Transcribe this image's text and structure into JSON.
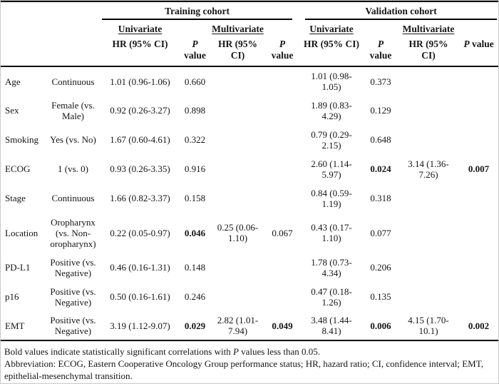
{
  "header": {
    "cohorts": [
      {
        "label": "Training cohort"
      },
      {
        "label": "Validation cohort"
      }
    ],
    "analyses": {
      "training_univariate": "Univariate",
      "training_multivariate": "Multivariate",
      "validation_univariate": "Univariate",
      "validation_multivariate": "Multivariate"
    },
    "hr_label": "HR (95% CI)",
    "p_label": {
      "italic": "P",
      "rest": "value"
    }
  },
  "rows": [
    {
      "variable": "Age",
      "category": "Continuous",
      "t_uni_hr": "1.01 (0.96-1.06)",
      "t_uni_p": "0.660",
      "t_uni_p_bold": false,
      "t_multi_hr": "",
      "t_multi_p": "",
      "t_multi_p_bold": false,
      "v_uni_hr": "1.01 (0.98-1.05)",
      "v_uni_p": "0.373",
      "v_uni_p_bold": false,
      "v_multi_hr": "",
      "v_multi_p": "",
      "v_multi_p_bold": false
    },
    {
      "variable": "Sex",
      "category": "Female (vs. Male)",
      "t_uni_hr": "0.92 (0.26-3.27)",
      "t_uni_p": "0.898",
      "t_uni_p_bold": false,
      "t_multi_hr": "",
      "t_multi_p": "",
      "t_multi_p_bold": false,
      "v_uni_hr": "1.89 (0.83-4.29)",
      "v_uni_p": "0.129",
      "v_uni_p_bold": false,
      "v_multi_hr": "",
      "v_multi_p": "",
      "v_multi_p_bold": false
    },
    {
      "variable": "Smoking",
      "category": "Yes (vs. No)",
      "t_uni_hr": "1.67 (0.60-4.61)",
      "t_uni_p": "0.322",
      "t_uni_p_bold": false,
      "t_multi_hr": "",
      "t_multi_p": "",
      "t_multi_p_bold": false,
      "v_uni_hr": "0.79 (0.29-2.15)",
      "v_uni_p": "0.648",
      "v_uni_p_bold": false,
      "v_multi_hr": "",
      "v_multi_p": "",
      "v_multi_p_bold": false
    },
    {
      "variable": "ECOG",
      "category": "1 (vs. 0)",
      "t_uni_hr": "0.93 (0.26-3.35)",
      "t_uni_p": "0.916",
      "t_uni_p_bold": false,
      "t_multi_hr": "",
      "t_multi_p": "",
      "t_multi_p_bold": false,
      "v_uni_hr": "2.60 (1.14-5.97)",
      "v_uni_p": "0.024",
      "v_uni_p_bold": true,
      "v_multi_hr": "3.14 (1.36-7.26)",
      "v_multi_p": "0.007",
      "v_multi_p_bold": true
    },
    {
      "variable": "Stage",
      "category": "Continuous",
      "t_uni_hr": "1.66 (0.82-3.37)",
      "t_uni_p": "0.158",
      "t_uni_p_bold": false,
      "t_multi_hr": "",
      "t_multi_p": "",
      "t_multi_p_bold": false,
      "v_uni_hr": "0.84 (0.59-1.19)",
      "v_uni_p": "0.318",
      "v_uni_p_bold": false,
      "v_multi_hr": "",
      "v_multi_p": "",
      "v_multi_p_bold": false
    },
    {
      "variable": "Location",
      "category": "Oropharynx (vs. Non-oropharynx)",
      "t_uni_hr": "0.22 (0.05-0.97)",
      "t_uni_p": "0.046",
      "t_uni_p_bold": true,
      "t_multi_hr": "0.25 (0.06-1.10)",
      "t_multi_p": "0.067",
      "t_multi_p_bold": false,
      "v_uni_hr": "0.43 (0.17-1.10)",
      "v_uni_p": "0.077",
      "v_uni_p_bold": false,
      "v_multi_hr": "",
      "v_multi_p": "",
      "v_multi_p_bold": false
    },
    {
      "variable": "PD-L1",
      "category": "Positive (vs. Negative)",
      "t_uni_hr": "0.46 (0.16-1.31)",
      "t_uni_p": "0.148",
      "t_uni_p_bold": false,
      "t_multi_hr": "",
      "t_multi_p": "",
      "t_multi_p_bold": false,
      "v_uni_hr": "1.78 (0.73-4.34)",
      "v_uni_p": "0.206",
      "v_uni_p_bold": false,
      "v_multi_hr": "",
      "v_multi_p": "",
      "v_multi_p_bold": false
    },
    {
      "variable": "p16",
      "category": "Positive (vs. Negative)",
      "t_uni_hr": "0.50 (0.16-1.61)",
      "t_uni_p": "0.246",
      "t_uni_p_bold": false,
      "t_multi_hr": "",
      "t_multi_p": "",
      "t_multi_p_bold": false,
      "v_uni_hr": "0.47 (0.18-1.26)",
      "v_uni_p": "0.135",
      "v_uni_p_bold": false,
      "v_multi_hr": "",
      "v_multi_p": "",
      "v_multi_p_bold": false
    },
    {
      "variable": "EMT",
      "category": "Positive (vs. Negative)",
      "t_uni_hr": "3.19 (1.12-9.07)",
      "t_uni_p": "0.029",
      "t_uni_p_bold": true,
      "t_multi_hr": "2.82 (1.01-7.94)",
      "t_multi_p": "0.049",
      "t_multi_p_bold": true,
      "v_uni_hr": "3.48 (1.44-8.41)",
      "v_uni_p": "0.006",
      "v_uni_p_bold": true,
      "v_multi_hr": "4.15 (1.70-10.1)",
      "v_multi_p": "0.002",
      "v_multi_p_bold": true
    }
  ],
  "footnotes": {
    "line1": {
      "prefix": "Bold values indicate statistically significant correlations with ",
      "italic": "P",
      "suffix": " values less than 0.05."
    },
    "line2": "Abbreviation: ECOG, Eastern Cooperative Oncology Group performance status; HR, hazard ratio; CI, confidence interval; EMT, epithelial-mesenchymal transition."
  }
}
